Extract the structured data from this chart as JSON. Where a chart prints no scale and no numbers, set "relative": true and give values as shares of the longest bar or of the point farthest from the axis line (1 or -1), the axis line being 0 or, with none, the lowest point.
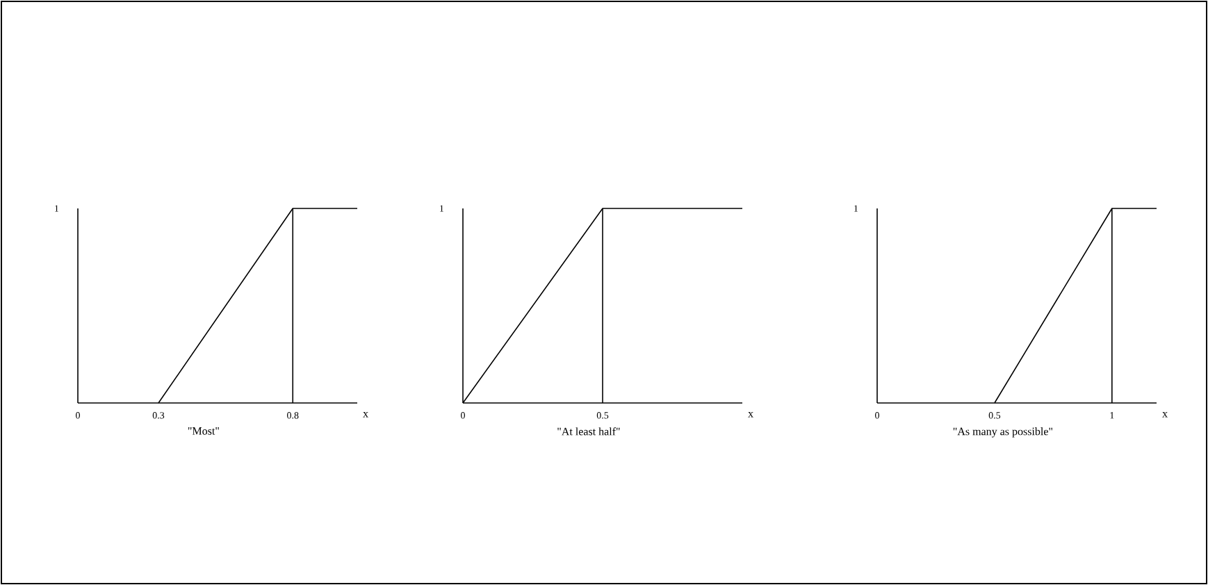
{
  "chart_data": [
    {
      "type": "line",
      "title": "\"Most\"",
      "xlabel": "x",
      "x": [
        0.3,
        0.8,
        1.04
      ],
      "values": [
        0,
        1,
        1
      ],
      "color": "#000000",
      "xlim": [
        0,
        1.04
      ],
      "xticks": [
        0,
        0.3,
        0.8
      ],
      "relative": true,
      "annotations": [
        "1"
      ],
      "ref_lines": [
        {
          "axis": "x",
          "value": 0.8
        }
      ]
    },
    {
      "type": "line",
      "title": "\"At least half\"",
      "xlabel": "x",
      "x": [
        0,
        0.5,
        1
      ],
      "values": [
        0,
        1,
        1
      ],
      "color": "#000000",
      "xlim": [
        0,
        1
      ],
      "xticks": [
        0,
        0.5
      ],
      "relative": true,
      "annotations": [
        "1"
      ],
      "ref_lines": [
        {
          "axis": "x",
          "value": 0.5
        }
      ]
    },
    {
      "type": "line",
      "title": "\"As many as possible\"",
      "xlabel": "x",
      "x": [
        0.5,
        1,
        1.19
      ],
      "values": [
        0,
        1,
        1
      ],
      "color": "#000000",
      "xlim": [
        0,
        1.19
      ],
      "xticks": [
        0,
        0.5,
        1
      ],
      "relative": true,
      "annotations": [
        "1"
      ],
      "ref_lines": [
        {
          "axis": "x",
          "value": 1
        }
      ]
    }
  ]
}
